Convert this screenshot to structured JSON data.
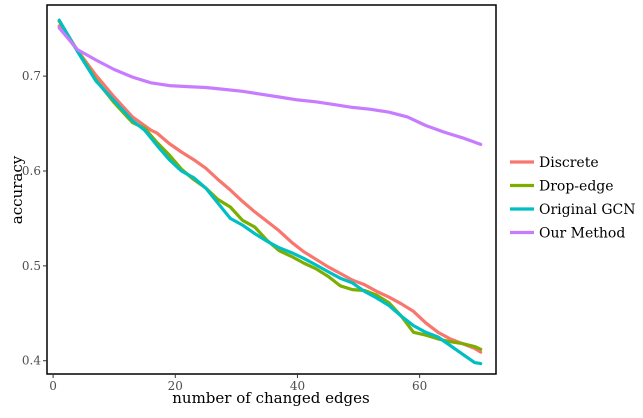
{
  "chart_data": {
    "type": "line",
    "title": "",
    "xlabel": "number of changed edges",
    "ylabel": "accuracy",
    "xlim": [
      -1,
      72.5
    ],
    "ylim": [
      0.386,
      0.775
    ],
    "x_ticks": [
      0,
      20,
      40,
      60
    ],
    "x_tick_labels": [
      "0",
      "20",
      "40",
      "60"
    ],
    "y_ticks": [
      0.4,
      0.5,
      0.6,
      0.7
    ],
    "y_tick_labels": [
      "0.4",
      "0.5",
      "0.6",
      "0.7"
    ],
    "grid": false,
    "legend_position": "right",
    "series": [
      {
        "name": "Discrete",
        "color": "#F8766D",
        "x": [
          1,
          4,
          7,
          10,
          13,
          16,
          17,
          19,
          21,
          23,
          25,
          27,
          29,
          31,
          33,
          35,
          37,
          39,
          41,
          43,
          45,
          47,
          49,
          51,
          53,
          55,
          57,
          59,
          61,
          63,
          65,
          67,
          69,
          70
        ],
        "y": [
          0.753,
          0.727,
          0.701,
          0.678,
          0.657,
          0.643,
          0.64,
          0.629,
          0.62,
          0.612,
          0.603,
          0.591,
          0.58,
          0.568,
          0.557,
          0.547,
          0.537,
          0.525,
          0.515,
          0.507,
          0.499,
          0.492,
          0.485,
          0.48,
          0.473,
          0.467,
          0.46,
          0.452,
          0.44,
          0.43,
          0.423,
          0.418,
          0.413,
          0.409
        ]
      },
      {
        "name": "Drop-edge",
        "color": "#7CAE00",
        "x": [
          1,
          4,
          7,
          10,
          13,
          15,
          17,
          19,
          21,
          23,
          25,
          27,
          29,
          31,
          33,
          35,
          37,
          39,
          41,
          43,
          45,
          47,
          49,
          51,
          53,
          55,
          57,
          59,
          61,
          63,
          65,
          67,
          69,
          70
        ],
        "y": [
          0.758,
          0.727,
          0.696,
          0.672,
          0.651,
          0.645,
          0.63,
          0.617,
          0.602,
          0.591,
          0.582,
          0.57,
          0.562,
          0.548,
          0.541,
          0.527,
          0.516,
          0.51,
          0.503,
          0.497,
          0.489,
          0.479,
          0.475,
          0.474,
          0.469,
          0.461,
          0.447,
          0.43,
          0.427,
          0.423,
          0.42,
          0.418,
          0.415,
          0.412
        ]
      },
      {
        "name": "Original GCN",
        "color": "#00BFC4",
        "x": [
          1,
          4,
          7,
          10,
          13,
          15,
          17,
          19,
          21,
          23,
          25,
          27,
          29,
          31,
          33,
          35,
          37,
          39,
          41,
          43,
          45,
          47,
          49,
          51,
          53,
          55,
          57,
          59,
          61,
          63,
          65,
          67,
          69,
          70
        ],
        "y": [
          0.759,
          0.726,
          0.695,
          0.674,
          0.653,
          0.643,
          0.627,
          0.612,
          0.6,
          0.593,
          0.582,
          0.566,
          0.55,
          0.543,
          0.534,
          0.526,
          0.519,
          0.514,
          0.508,
          0.501,
          0.494,
          0.487,
          0.482,
          0.473,
          0.466,
          0.458,
          0.447,
          0.437,
          0.43,
          0.425,
          0.416,
          0.407,
          0.398,
          0.397
        ]
      },
      {
        "name": "Our Method",
        "color": "#C77CFF",
        "x": [
          1,
          4,
          7,
          10,
          13,
          16,
          19,
          22,
          25,
          28,
          31,
          34,
          37,
          40,
          43,
          46,
          49,
          52,
          55,
          58,
          61,
          64,
          67,
          70
        ],
        "y": [
          0.751,
          0.728,
          0.717,
          0.707,
          0.699,
          0.693,
          0.69,
          0.689,
          0.688,
          0.686,
          0.684,
          0.681,
          0.678,
          0.675,
          0.673,
          0.67,
          0.667,
          0.665,
          0.662,
          0.657,
          0.648,
          0.641,
          0.635,
          0.628
        ]
      }
    ]
  }
}
